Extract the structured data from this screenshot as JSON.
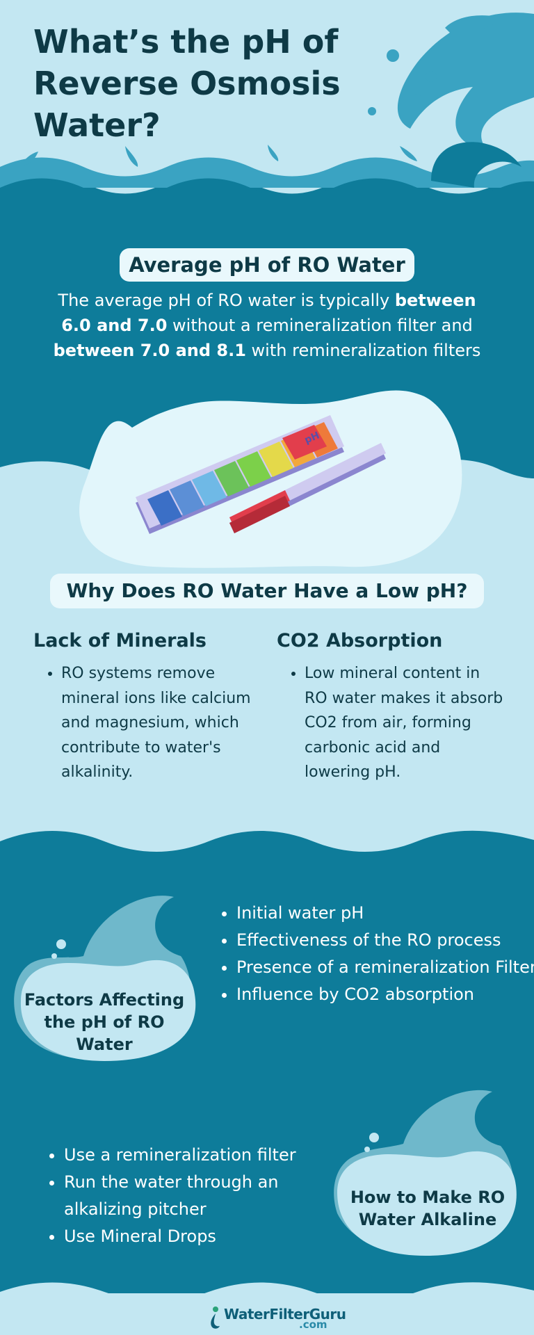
{
  "title": "What’s the pH of Reverse Osmosis Water?",
  "average": {
    "heading": "Average pH of RO Water",
    "text_1": "The average pH of RO water is typically ",
    "bold_1": "between 6.0 and 7.0",
    "text_2": " without a remineralization filter and ",
    "bold_2": "between 7.0 and 8.1",
    "text_3": " with remineralization filters",
    "strip_label": "pH"
  },
  "why": {
    "heading": "Why Does RO Water Have a Low pH?",
    "columns": [
      {
        "title": "Lack of Minerals",
        "bullet": "RO systems remove mineral ions like calcium and magnesium, which contribute to water's alkalinity."
      },
      {
        "title": "CO2 Absorption",
        "bullet": "Low mineral content in RO water makes it absorb CO2 from air, forming carbonic acid and lowering pH."
      }
    ]
  },
  "factors": {
    "label": "Factors Affecting the pH of RO Water",
    "items": [
      "Initial water pH",
      "Effectiveness of the RO process",
      "Presence of a remineralization Filter",
      "Influence by CO2 absorption"
    ]
  },
  "alkaline": {
    "label": "How to Make RO Water Alkaline",
    "items": [
      "Use a remineralization filter",
      "Run the water through an alkalizing pitcher",
      "Use Mineral Drops"
    ]
  },
  "footer": {
    "logo_main": "WaterFilterGuru",
    "logo_sub": ".com"
  },
  "colors": {
    "dark_teal": "#0e7c9a",
    "light_blue": "#c3e7f2",
    "navy_text": "#0e3a46",
    "pill_bg": "#e9f8fc"
  }
}
